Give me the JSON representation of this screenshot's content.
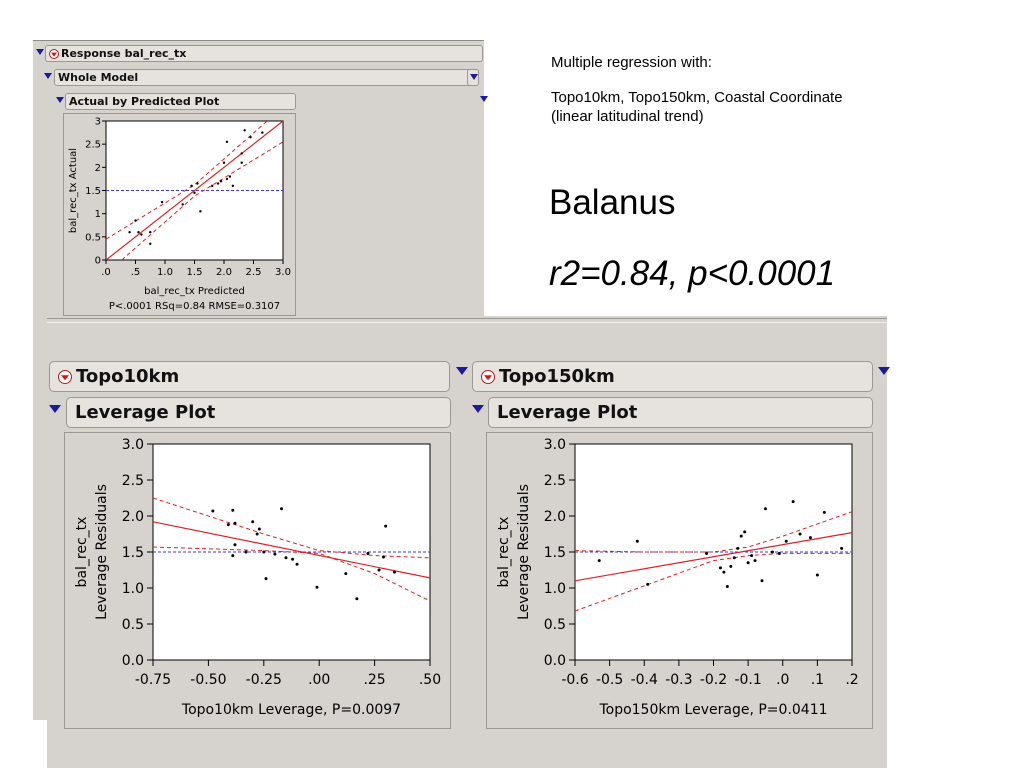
{
  "text_block": {
    "line1": "Multiple regression with:",
    "line2": "Topo10km, Topo150km, Coastal Coordinate (linear latitudinal trend)",
    "species": "Balanus",
    "stats": "r2=0.84, p<0.0001"
  },
  "top_panel": {
    "response_header": "Response bal_rec_tx",
    "whole_model_header": "Whole Model",
    "actual_predicted_header": "Actual by Predicted Plot"
  },
  "bottom_panels": {
    "left_header": "Topo10km",
    "left_sub_header": "Leverage Plot",
    "right_header": "Topo150km",
    "right_sub_header": "Leverage Plot"
  },
  "chart_data": [
    {
      "type": "scatter",
      "title": "Actual by Predicted Plot",
      "xlabel": "bal_rec_tx Predicted",
      "ylabel": "bal_rec_tx Actual",
      "footer": "P<.0001 RSq=0.84 RMSE=0.3107",
      "xlim": [
        0,
        3.0
      ],
      "ylim": [
        0,
        3
      ],
      "x_ticks": [
        0,
        0.5,
        1.0,
        1.5,
        2.0,
        2.5,
        3.0
      ],
      "x_tick_labels": [
        ".0",
        ".5",
        "1.0",
        "1.5",
        "2.0",
        "2.5",
        "3.0"
      ],
      "y_ticks": [
        0,
        0.5,
        1,
        1.5,
        2,
        2.5,
        3
      ],
      "y_tick_labels": [
        "0",
        "0.5",
        "1",
        "1.5",
        "2",
        "2.5",
        "3"
      ],
      "mean_line": 1.5,
      "fit_line": [
        [
          0,
          0
        ],
        [
          3.0,
          3.0
        ]
      ],
      "ci_upper": [
        [
          0,
          0.45
        ],
        [
          1.5,
          1.62
        ],
        [
          3.0,
          3.3
        ]
      ],
      "ci_lower": [
        [
          0,
          -0.3
        ],
        [
          1.5,
          1.38
        ],
        [
          3.0,
          2.55
        ]
      ],
      "points": [
        [
          0.4,
          0.6
        ],
        [
          0.5,
          0.85
        ],
        [
          0.55,
          0.6
        ],
        [
          0.6,
          0.55
        ],
        [
          0.75,
          0.6
        ],
        [
          0.75,
          0.35
        ],
        [
          0.95,
          1.25
        ],
        [
          1.3,
          1.2
        ],
        [
          1.45,
          1.6
        ],
        [
          1.5,
          1.45
        ],
        [
          1.55,
          1.65
        ],
        [
          1.6,
          1.05
        ],
        [
          1.8,
          1.6
        ],
        [
          1.9,
          1.65
        ],
        [
          1.95,
          1.7
        ],
        [
          2.0,
          2.1
        ],
        [
          2.05,
          1.75
        ],
        [
          2.05,
          2.55
        ],
        [
          2.1,
          1.8
        ],
        [
          2.15,
          1.6
        ],
        [
          2.3,
          2.1
        ],
        [
          2.3,
          2.3
        ],
        [
          2.35,
          2.8
        ],
        [
          2.45,
          2.65
        ],
        [
          2.65,
          2.75
        ]
      ],
      "grid": false
    },
    {
      "type": "scatter",
      "title": "Leverage Plot",
      "xlabel": "Topo10km Leverage, P=0.0097",
      "ylabel": "bal_rec_tx Leverage Residuals",
      "xlim": [
        -0.75,
        0.5
      ],
      "ylim": [
        0,
        3.0
      ],
      "x_ticks": [
        -0.75,
        -0.5,
        -0.25,
        0,
        0.25,
        0.5
      ],
      "x_tick_labels": [
        "-0.75",
        "-0.50",
        "-0.25",
        ".00",
        ".25",
        ".50"
      ],
      "y_ticks": [
        0,
        0.5,
        1,
        1.5,
        2,
        2.5,
        3
      ],
      "y_tick_labels": [
        "0.0",
        "0.5",
        "1.0",
        "1.5",
        "2.0",
        "2.5",
        "3.0"
      ],
      "mean_line": 1.5,
      "fit_line": [
        [
          -0.75,
          1.92
        ],
        [
          0.5,
          1.14
        ]
      ],
      "ci_upper": [
        [
          -0.75,
          2.25
        ],
        [
          -0.25,
          1.75
        ],
        [
          0,
          1.52
        ],
        [
          0.25,
          1.45
        ],
        [
          0.5,
          1.42
        ]
      ],
      "ci_lower": [
        [
          -0.75,
          1.57
        ],
        [
          -0.25,
          1.52
        ],
        [
          0,
          1.48
        ],
        [
          0.25,
          1.2
        ],
        [
          0.5,
          0.82
        ]
      ],
      "points": [
        [
          -0.48,
          2.07
        ],
        [
          -0.41,
          1.88
        ],
        [
          -0.39,
          2.08
        ],
        [
          -0.38,
          1.9
        ],
        [
          -0.38,
          1.6
        ],
        [
          -0.39,
          1.45
        ],
        [
          -0.33,
          1.5
        ],
        [
          -0.3,
          1.92
        ],
        [
          -0.28,
          1.75
        ],
        [
          -0.27,
          1.82
        ],
        [
          -0.25,
          1.5
        ],
        [
          -0.24,
          1.13
        ],
        [
          -0.2,
          1.47
        ],
        [
          -0.17,
          2.1
        ],
        [
          -0.15,
          1.42
        ],
        [
          -0.12,
          1.4
        ],
        [
          -0.1,
          1.33
        ],
        [
          -0.01,
          1.01
        ],
        [
          0.12,
          1.2
        ],
        [
          0.17,
          0.85
        ],
        [
          0.22,
          1.48
        ],
        [
          0.27,
          1.25
        ],
        [
          0.29,
          1.43
        ],
        [
          0.3,
          1.86
        ],
        [
          0.34,
          1.22
        ]
      ],
      "grid": false
    },
    {
      "type": "scatter",
      "title": "Leverage Plot",
      "xlabel": "Topo150km Leverage, P=0.0411",
      "ylabel": "bal_rec_tx Leverage Residuals",
      "xlim": [
        -0.6,
        0.2
      ],
      "ylim": [
        0,
        3.0
      ],
      "x_ticks": [
        -0.6,
        -0.5,
        -0.4,
        -0.3,
        -0.2,
        -0.1,
        0,
        0.1,
        0.2
      ],
      "x_tick_labels": [
        "-0.6",
        "-0.5",
        "-0.4",
        "-0.3",
        "-0.2",
        "-0.1",
        ".0",
        ".1",
        ".2"
      ],
      "y_ticks": [
        0,
        0.5,
        1,
        1.5,
        2,
        2.5,
        3
      ],
      "y_tick_labels": [
        "0.0",
        "0.5",
        "1.0",
        "1.5",
        "2.0",
        "2.5",
        "3.0"
      ],
      "mean_line": 1.5,
      "fit_line": [
        [
          -0.6,
          1.1
        ],
        [
          0.2,
          1.77
        ]
      ],
      "ci_upper": [
        [
          -0.6,
          1.52
        ],
        [
          -0.4,
          1.5
        ],
        [
          -0.2,
          1.5
        ],
        [
          -0.1,
          1.57
        ],
        [
          0,
          1.72
        ],
        [
          0.2,
          2.06
        ]
      ],
      "ci_lower": [
        [
          -0.6,
          0.68
        ],
        [
          -0.4,
          1.03
        ],
        [
          -0.2,
          1.38
        ],
        [
          -0.1,
          1.45
        ],
        [
          0,
          1.48
        ],
        [
          0.2,
          1.48
        ]
      ],
      "points": [
        [
          -0.53,
          1.38
        ],
        [
          -0.42,
          1.65
        ],
        [
          -0.39,
          1.05
        ],
        [
          -0.22,
          1.48
        ],
        [
          -0.18,
          1.28
        ],
        [
          -0.17,
          1.22
        ],
        [
          -0.16,
          1.02
        ],
        [
          -0.15,
          1.3
        ],
        [
          -0.14,
          1.42
        ],
        [
          -0.13,
          1.55
        ],
        [
          -0.12,
          1.72
        ],
        [
          -0.11,
          1.78
        ],
        [
          -0.1,
          1.35
        ],
        [
          -0.09,
          1.45
        ],
        [
          -0.08,
          1.38
        ],
        [
          -0.06,
          1.1
        ],
        [
          -0.05,
          2.1
        ],
        [
          -0.03,
          1.5
        ],
        [
          -0.01,
          1.48
        ],
        [
          0.01,
          1.65
        ],
        [
          0.03,
          2.2
        ],
        [
          0.05,
          1.75
        ],
        [
          0.08,
          1.7
        ],
        [
          0.1,
          1.18
        ],
        [
          0.12,
          2.05
        ],
        [
          0.17,
          1.55
        ]
      ],
      "grid": false
    }
  ]
}
